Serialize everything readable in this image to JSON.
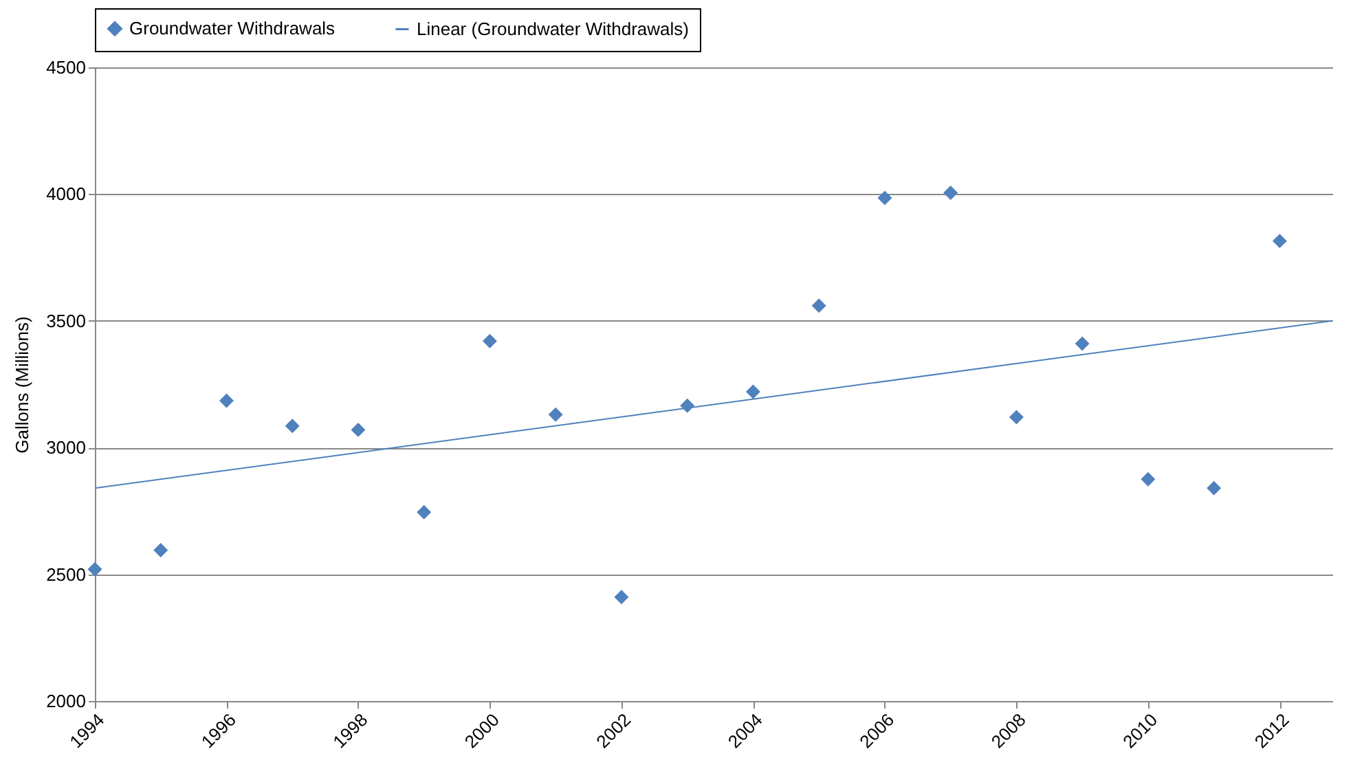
{
  "chart_data": {
    "type": "scatter",
    "ylabel": "Gallons (Millions)",
    "xlim": [
      1994,
      2012.8
    ],
    "xticks": [
      1994,
      1996,
      1998,
      2000,
      2002,
      2004,
      2006,
      2008,
      2010,
      2012
    ],
    "ylim": [
      2000,
      4500
    ],
    "yticks": [
      2000,
      2500,
      3000,
      3500,
      4000,
      4500
    ],
    "grid": "y",
    "legend": "top",
    "series": [
      {
        "name": "Groundwater Withdrawals",
        "marker": "diamond",
        "color": "#4f81bd",
        "x": [
          1994,
          1995,
          1996,
          1997,
          1998,
          1999,
          2000,
          2001,
          2002,
          2003,
          2004,
          2005,
          2006,
          2007,
          2008,
          2009,
          2010,
          2011,
          2012
        ],
        "values": [
          2520,
          2595,
          3185,
          3085,
          3070,
          2745,
          3420,
          3130,
          2410,
          3165,
          3220,
          3560,
          3985,
          4005,
          3120,
          3410,
          2875,
          2840,
          3815
        ]
      },
      {
        "name": "Linear (Groundwater Withdrawals)",
        "type": "line",
        "marker": "none",
        "color": "#4f81bd",
        "x": [
          1994,
          2012.8
        ],
        "values": [
          2840,
          3500
        ]
      }
    ]
  }
}
